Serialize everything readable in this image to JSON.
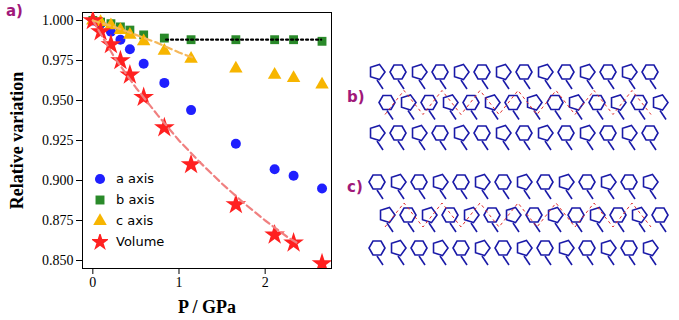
{
  "chart_data": {
    "type": "scatter",
    "panel_label": "a)",
    "xlabel": "P / GPa",
    "ylabel": "Relative variation",
    "xlim": [
      -0.12,
      2.77
    ],
    "xticks": [
      0,
      1,
      2
    ],
    "ylim": [
      0.845,
      1.005
    ],
    "yticks": [
      {
        "value": 0.85,
        "label": "0.850"
      },
      {
        "value": 0.875,
        "label": "0.875"
      },
      {
        "value": 0.9,
        "label": "0.900"
      },
      {
        "value": 0.925,
        "label": "0.925"
      },
      {
        "value": 0.95,
        "label": "0.950"
      },
      {
        "value": 0.975,
        "label": "0.975"
      },
      {
        "value": 1.0,
        "label": "1.000"
      }
    ],
    "legend": "lower left",
    "grid": false,
    "x": [
      0,
      0.09,
      0.21,
      0.32,
      0.43,
      0.59,
      0.83,
      1.14,
      1.66,
      2.11,
      2.33,
      2.66
    ],
    "series": [
      {
        "name": "a axis",
        "color": "#1f1fff",
        "marker": "circle",
        "values": [
          1.0,
          0.998,
          0.993,
          0.988,
          0.982,
          0.973,
          0.961,
          0.944,
          0.923,
          0.907,
          0.903,
          0.895
        ]
      },
      {
        "name": "b axis",
        "color": "#2a8a2a",
        "marker": "square",
        "values": [
          1.0,
          0.999,
          0.998,
          0.996,
          0.994,
          0.991,
          0.989,
          0.988,
          0.988,
          0.988,
          0.988,
          0.987
        ]
      },
      {
        "name": "c axis",
        "color": "#f7b500",
        "marker": "triangle",
        "values": [
          1.0,
          0.999,
          0.997,
          0.994,
          0.991,
          0.987,
          0.981,
          0.976,
          0.97,
          0.966,
          0.964,
          0.96
        ]
      },
      {
        "name": "Volume",
        "color": "#ff2020",
        "marker": "star",
        "values": [
          1.0,
          0.993,
          0.985,
          0.975,
          0.966,
          0.952,
          0.933,
          0.91,
          0.885,
          0.866,
          0.861,
          0.848
        ]
      },
      {
        "type": "line",
        "line_style": "dashed",
        "color": "#f08080",
        "x": [
          0,
          0.25,
          0.5,
          0.75,
          1.0,
          1.25,
          1.5,
          1.75,
          2.0,
          2.25,
          2.4
        ],
        "values": [
          1.0,
          0.977,
          0.958,
          0.941,
          0.925,
          0.911,
          0.898,
          0.886,
          0.875,
          0.865,
          0.86
        ]
      },
      {
        "type": "line",
        "line_style": "dashed",
        "color": "#f5b85a",
        "x": [
          0,
          0.25,
          0.5,
          0.75,
          1.0,
          1.15
        ],
        "values": [
          1.0,
          0.996,
          0.991,
          0.986,
          0.98,
          0.977
        ]
      },
      {
        "type": "line",
        "line_style": "dotted",
        "color": "#000000",
        "x": [
          0.85,
          2.65
        ],
        "values": [
          0.988,
          0.988
        ]
      }
    ]
  },
  "other_panels": [
    {
      "label": "b)"
    },
    {
      "label": "c)"
    }
  ]
}
